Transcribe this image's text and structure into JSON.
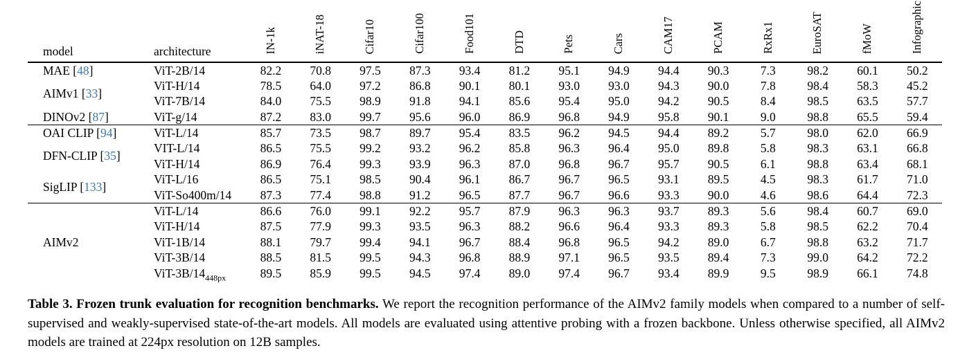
{
  "colors": {
    "citation_blue": "#3c78b9",
    "text": "#000000",
    "background": "#ffffff"
  },
  "table": {
    "text_columns": [
      "model",
      "architecture"
    ],
    "metric_columns": [
      "IN-1k",
      "iNAT-18",
      "Cifar10",
      "Cifar100",
      "Food101",
      "DTD",
      "Pets",
      "Cars",
      "CAM17",
      "PCAM",
      "RxRx1",
      "EuroSAT",
      "fMoW",
      "Infographic"
    ],
    "groups": [
      {
        "rows": [
          {
            "model": {
              "label": "MAE",
              "cite": "48",
              "rowspan": 1
            },
            "arch": "ViT-2B/14",
            "values": [
              "82.2",
              "70.8",
              "97.5",
              "87.3",
              "93.4",
              "81.2",
              "95.1",
              "94.9",
              "94.4",
              "90.3",
              "7.3",
              "98.2",
              "60.1",
              "50.2"
            ]
          },
          {
            "model": {
              "label": "AIMv1",
              "cite": "33",
              "rowspan": 2
            },
            "arch": "ViT-H/14",
            "values": [
              "78.5",
              "64.0",
              "97.2",
              "86.8",
              "90.1",
              "80.1",
              "93.0",
              "93.0",
              "94.3",
              "90.0",
              "7.8",
              "98.4",
              "58.3",
              "45.2"
            ]
          },
          {
            "model": null,
            "arch": "ViT-7B/14",
            "values": [
              "84.0",
              "75.5",
              "98.9",
              "91.8",
              "94.1",
              "85.6",
              "95.4",
              "95.0",
              "94.2",
              "90.5",
              "8.4",
              "98.5",
              "63.5",
              "57.7"
            ]
          },
          {
            "model": {
              "label": "DINOv2",
              "cite": "87",
              "rowspan": 1
            },
            "arch": "ViT-g/14",
            "values": [
              "87.2",
              "83.0",
              "99.7",
              "95.6",
              "96.0",
              "86.9",
              "96.8",
              "94.9",
              "95.8",
              "90.1",
              "9.0",
              "98.8",
              "65.5",
              "59.4"
            ]
          }
        ]
      },
      {
        "rows": [
          {
            "model": {
              "label": "OAI CLIP",
              "cite": "94",
              "rowspan": 1
            },
            "arch": "ViT-L/14",
            "values": [
              "85.7",
              "73.5",
              "98.7",
              "89.7",
              "95.4",
              "83.5",
              "96.2",
              "94.5",
              "94.4",
              "89.2",
              "5.7",
              "98.0",
              "62.0",
              "66.9"
            ]
          },
          {
            "model": {
              "label": "DFN-CLIP",
              "cite": "35",
              "rowspan": 2
            },
            "arch": "VIT-L/14",
            "values": [
              "86.5",
              "75.5",
              "99.2",
              "93.2",
              "96.2",
              "85.8",
              "96.3",
              "96.4",
              "95.0",
              "89.8",
              "5.8",
              "98.3",
              "63.1",
              "66.8"
            ]
          },
          {
            "model": null,
            "arch": "ViT-H/14",
            "values": [
              "86.9",
              "76.4",
              "99.3",
              "93.9",
              "96.3",
              "87.0",
              "96.8",
              "96.7",
              "95.7",
              "90.5",
              "6.1",
              "98.8",
              "63.4",
              "68.1"
            ]
          },
          {
            "model": {
              "label": "SigLIP",
              "cite": "133",
              "rowspan": 2
            },
            "arch": "ViT-L/16",
            "values": [
              "86.5",
              "75.1",
              "98.5",
              "90.4",
              "96.1",
              "86.7",
              "96.7",
              "96.5",
              "93.1",
              "89.5",
              "4.5",
              "98.3",
              "61.7",
              "71.0"
            ]
          },
          {
            "model": null,
            "arch": "ViT-So400m/14",
            "values": [
              "87.3",
              "77.4",
              "98.8",
              "91.2",
              "96.5",
              "87.7",
              "96.7",
              "96.6",
              "93.3",
              "90.0",
              "4.6",
              "98.6",
              "64.4",
              "72.3"
            ]
          }
        ]
      },
      {
        "rows": [
          {
            "model": {
              "label": "AIMv2",
              "cite": null,
              "rowspan": 5
            },
            "arch": "ViT-L/14",
            "values": [
              "86.6",
              "76.0",
              "99.1",
              "92.2",
              "95.7",
              "87.9",
              "96.3",
              "96.3",
              "93.7",
              "89.3",
              "5.6",
              "98.4",
              "60.7",
              "69.0"
            ]
          },
          {
            "model": null,
            "arch": "ViT-H/14",
            "values": [
              "87.5",
              "77.9",
              "99.3",
              "93.5",
              "96.3",
              "88.2",
              "96.6",
              "96.4",
              "93.3",
              "89.3",
              "5.8",
              "98.5",
              "62.2",
              "70.4"
            ]
          },
          {
            "model": null,
            "arch": "ViT-1B/14",
            "values": [
              "88.1",
              "79.7",
              "99.4",
              "94.1",
              "96.7",
              "88.4",
              "96.8",
              "96.5",
              "94.2",
              "89.0",
              "6.7",
              "98.8",
              "63.2",
              "71.7"
            ]
          },
          {
            "model": null,
            "arch": "ViT-3B/14",
            "values": [
              "88.5",
              "81.5",
              "99.5",
              "94.3",
              "96.8",
              "88.9",
              "97.1",
              "96.5",
              "93.5",
              "89.4",
              "7.3",
              "99.0",
              "64.2",
              "72.2"
            ]
          },
          {
            "model": null,
            "arch": {
              "name": "ViT-3B/14",
              "sub": "448px"
            },
            "values": [
              "89.5",
              "85.9",
              "99.5",
              "94.5",
              "97.4",
              "89.0",
              "97.4",
              "96.7",
              "93.4",
              "89.9",
              "9.5",
              "98.9",
              "66.1",
              "74.8"
            ]
          }
        ]
      }
    ]
  },
  "caption": {
    "bold": "Table 3. Frozen trunk evaluation for recognition benchmarks.",
    "rest": " We report the recognition performance of the AIMv2 family models when compared to a number of self-supervised and weakly-supervised state-of-the-art models. All models are evaluated using attentive probing with a frozen backbone. Unless otherwise specified, all AIMv2 models are trained at 224px resolution on 12B samples."
  }
}
